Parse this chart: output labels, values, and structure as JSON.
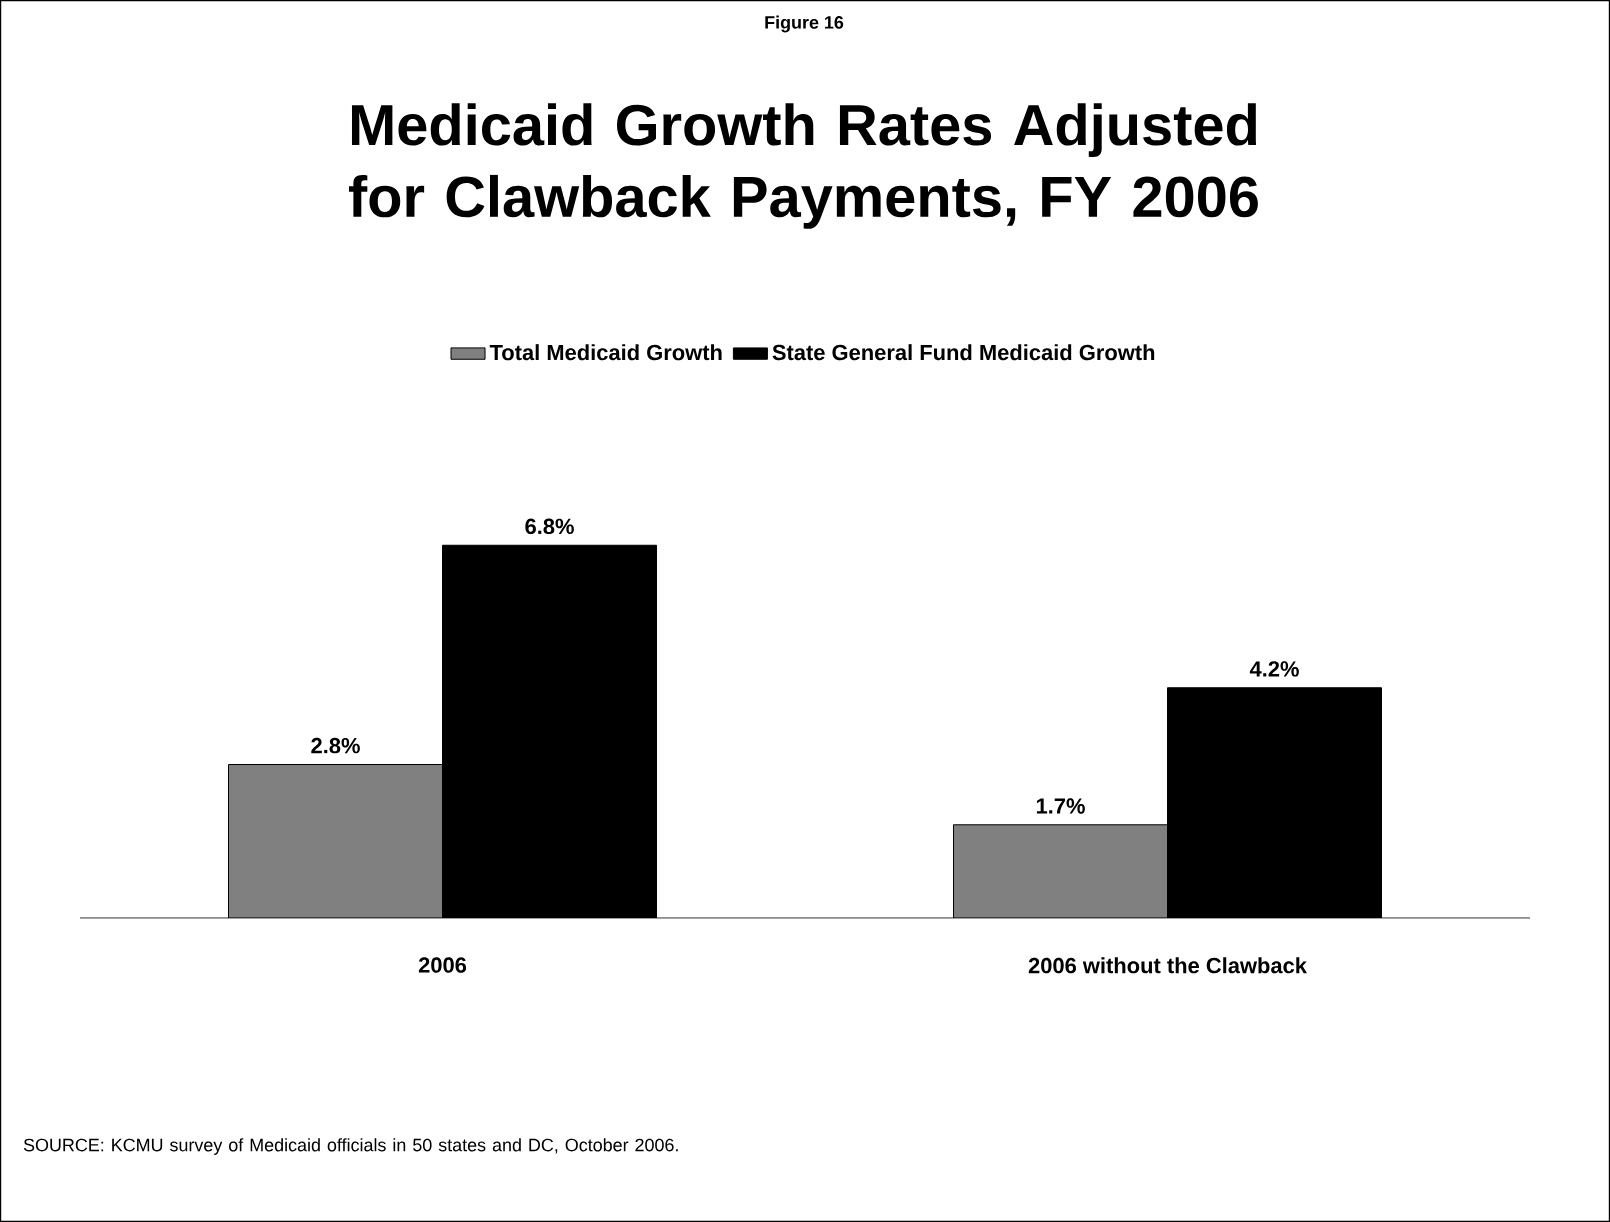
{
  "chart_data": {
    "type": "bar",
    "subtitle": "Figure 16",
    "title": "Medicaid Growth Rates Adjusted for Clawback Payments, FY 2006",
    "categories": [
      "2006",
      "2006 without the Clawback"
    ],
    "series": [
      {
        "name": "Total Medicaid Growth",
        "color": "#808080",
        "values": [
          2.8,
          1.7
        ],
        "value_labels": [
          "2.8%",
          "1.7%"
        ]
      },
      {
        "name": "State General Fund Medicaid Growth",
        "color": "#000000",
        "values": [
          6.8,
          4.2
        ],
        "value_labels": [
          "6.8%",
          "4.2%"
        ]
      }
    ],
    "legend": "top",
    "annotations": [
      "SOURCE: KCMU survey of Medicaid officials in 50 states and DC, October 2006."
    ]
  }
}
